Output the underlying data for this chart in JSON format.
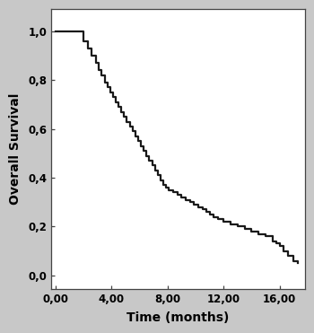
{
  "title": "",
  "xlabel": "Time (months)",
  "ylabel": "Overall Survival",
  "xlim": [
    -0.3,
    17.8
  ],
  "ylim": [
    -0.055,
    1.09
  ],
  "xticks": [
    0.0,
    4.0,
    8.0,
    12.0,
    16.0
  ],
  "yticks": [
    0.0,
    0.2,
    0.4,
    0.6,
    0.8,
    1.0
  ],
  "xtick_labels": [
    "0,00",
    "4,00",
    "8,00",
    "12,00",
    "16,00"
  ],
  "ytick_labels": [
    "0,0",
    "0,2",
    "0,4",
    "0,6",
    "0,8",
    "1,0"
  ],
  "line_color": "#1a1a1a",
  "line_width": 1.6,
  "background_color": "#ffffff",
  "outer_background": "#c8c8c8",
  "times": [
    0.0,
    2.0,
    2.0,
    2.3,
    2.6,
    2.9,
    3.1,
    3.3,
    3.5,
    3.7,
    3.9,
    4.1,
    4.3,
    4.5,
    4.7,
    4.9,
    5.1,
    5.3,
    5.5,
    5.7,
    5.9,
    6.1,
    6.3,
    6.5,
    6.7,
    6.9,
    7.1,
    7.3,
    7.5,
    7.7,
    7.9,
    8.1,
    8.4,
    8.7,
    9.0,
    9.3,
    9.6,
    9.9,
    10.2,
    10.5,
    10.8,
    11.0,
    11.3,
    11.6,
    12.0,
    12.5,
    13.0,
    13.5,
    14.0,
    14.5,
    15.0,
    15.5,
    15.8,
    16.0,
    16.3,
    16.6,
    17.0,
    17.3
  ],
  "survival": [
    1.0,
    1.0,
    0.96,
    0.93,
    0.9,
    0.87,
    0.84,
    0.82,
    0.79,
    0.77,
    0.75,
    0.73,
    0.71,
    0.69,
    0.67,
    0.65,
    0.63,
    0.61,
    0.59,
    0.57,
    0.55,
    0.53,
    0.51,
    0.49,
    0.47,
    0.45,
    0.43,
    0.41,
    0.39,
    0.37,
    0.36,
    0.35,
    0.34,
    0.33,
    0.32,
    0.31,
    0.3,
    0.29,
    0.28,
    0.27,
    0.26,
    0.25,
    0.24,
    0.23,
    0.22,
    0.21,
    0.2,
    0.19,
    0.18,
    0.17,
    0.16,
    0.14,
    0.13,
    0.12,
    0.1,
    0.08,
    0.06,
    0.05
  ]
}
